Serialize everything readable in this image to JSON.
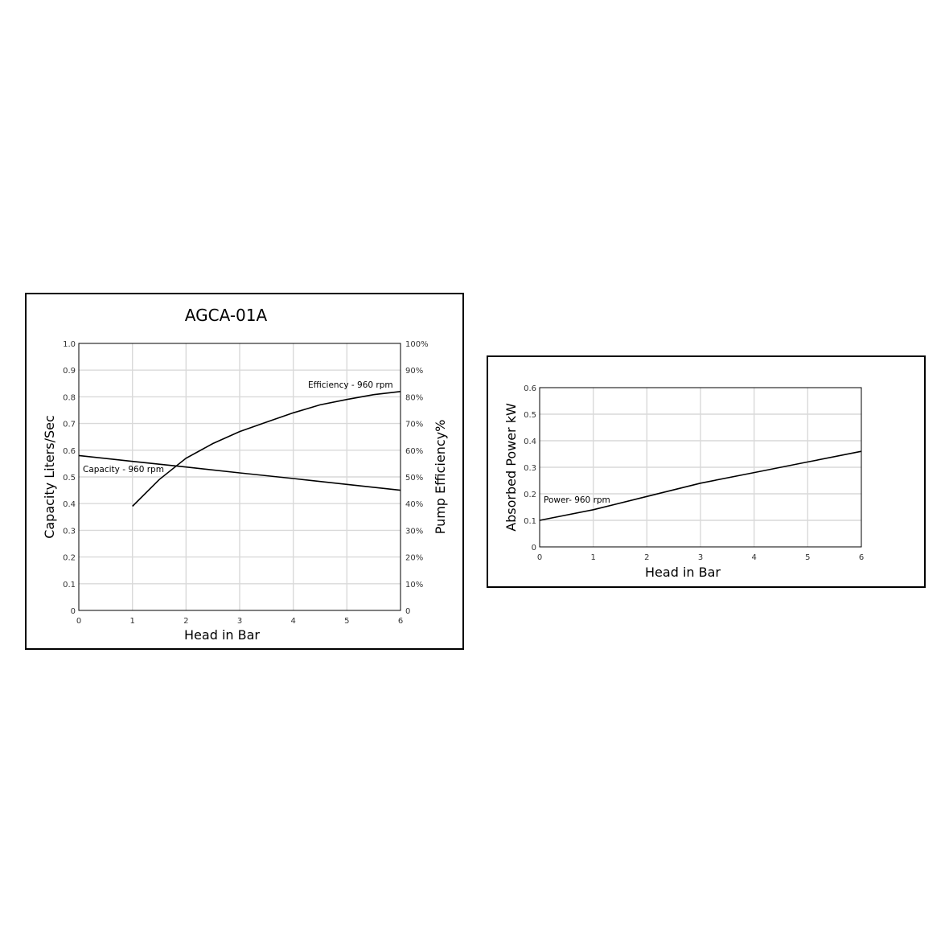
{
  "chart_data": [
    {
      "type": "line",
      "title": "AGCA-01A",
      "xlabel": "Head in Bar",
      "ylabel": "Capacity Liters/Sec",
      "y2label": "Pump Efficiency%",
      "xlim": [
        0,
        6
      ],
      "ylim": [
        0,
        1.0
      ],
      "y2lim": [
        0,
        100
      ],
      "x_ticks": [
        "0",
        "1",
        "2",
        "3",
        "4",
        "5",
        "6"
      ],
      "y_ticks": [
        "0",
        "0.1",
        "0.2",
        "0.3",
        "0.4",
        "0.5",
        "0.6",
        "0.7",
        "0.8",
        "0.9",
        "1.0"
      ],
      "y2_ticks": [
        "0",
        "10%",
        "20%",
        "30%",
        "40%",
        "50%",
        "60%",
        "70%",
        "80%",
        "90%",
        "100%"
      ],
      "grid": true,
      "series": [
        {
          "name": "Capacity - 960 rpm",
          "axis": "left",
          "x": [
            0,
            1,
            2,
            3,
            4,
            5,
            6
          ],
          "y": [
            0.58,
            0.558,
            0.537,
            0.515,
            0.494,
            0.472,
            0.45
          ]
        },
        {
          "name": "Efficiency - 960 rpm",
          "axis": "right",
          "x": [
            1,
            1.5,
            2,
            2.5,
            3,
            3.5,
            4,
            4.5,
            5,
            5.5,
            6
          ],
          "y": [
            39,
            49,
            57,
            62.5,
            67,
            70.5,
            74,
            77,
            79,
            80.8,
            82
          ]
        }
      ]
    },
    {
      "type": "line",
      "title": "",
      "xlabel": "Head in Bar",
      "ylabel": "Absorbed Power kW",
      "xlim": [
        0,
        6
      ],
      "ylim": [
        0,
        0.6
      ],
      "x_ticks": [
        "0",
        "1",
        "2",
        "3",
        "4",
        "5",
        "6"
      ],
      "y_ticks": [
        "0",
        "0.1",
        "0.2",
        "0.3",
        "0.4",
        "0.5",
        "0.6"
      ],
      "grid": true,
      "series": [
        {
          "name": "Power- 960 rpm",
          "x": [
            0,
            1,
            2,
            3,
            4,
            5,
            6
          ],
          "y": [
            0.1,
            0.14,
            0.19,
            0.24,
            0.28,
            0.32,
            0.36
          ]
        }
      ]
    }
  ]
}
